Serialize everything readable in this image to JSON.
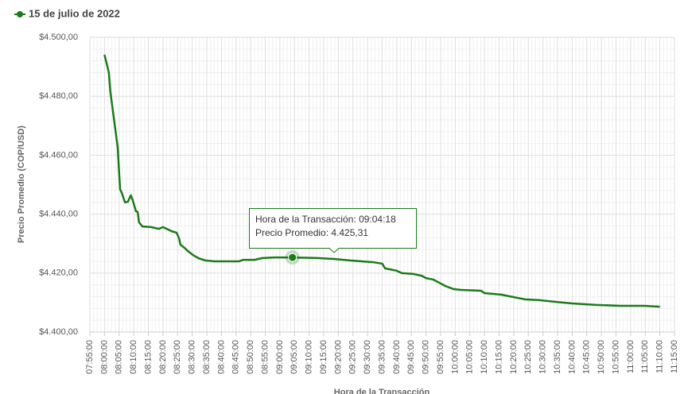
{
  "chart_data": {
    "type": "line",
    "x_label": "Hora de la Transacción",
    "y_label": "Precio Promedio (COP/USD)",
    "series": [
      {
        "name": "15 de julio de 2022",
        "color": "#1b7a1b",
        "x": [
          "08:00:00",
          "08:01:30",
          "08:02:00",
          "08:04:30",
          "08:05:20",
          "08:06:00",
          "08:07:00",
          "08:08:00",
          "08:09:00",
          "08:09:40",
          "08:10:45",
          "08:11:20",
          "08:11:50",
          "08:13:00",
          "08:16:00",
          "08:18:40",
          "08:20:00",
          "08:23:00",
          "08:24:40",
          "08:25:30",
          "08:26:00",
          "08:27:20",
          "08:28:30",
          "08:30:20",
          "08:32:15",
          "08:34:30",
          "08:37:40",
          "08:46:00",
          "08:47:30",
          "08:51:20",
          "08:54:00",
          "08:58:00",
          "09:04:18",
          "09:13:00",
          "09:18:30",
          "09:24:00",
          "09:32:00",
          "09:35:00",
          "09:36:00",
          "09:40:00",
          "09:41:40",
          "09:45:40",
          "09:48:30",
          "09:50:00",
          "09:52:30",
          "09:54:00",
          "09:56:40",
          "09:59:20",
          "10:02:00",
          "10:08:50",
          "10:10:00",
          "10:15:40",
          "10:19:45",
          "10:23:50",
          "10:29:00",
          "10:34:40",
          "10:40:00",
          "10:48:20",
          "10:56:30",
          "11:04:40",
          "11:10:00"
        ],
        "values": [
          4494.1,
          4488,
          4481.6,
          4462.8,
          4448.5,
          4447,
          4444,
          4444.2,
          4446.4,
          4444.7,
          4441,
          4440.8,
          4437.2,
          4435.8,
          4435.6,
          4435,
          4435.6,
          4434.2,
          4433.7,
          4431.8,
          4429.6,
          4428.6,
          4427.5,
          4426.1,
          4425,
          4424.3,
          4424,
          4424,
          4424.5,
          4424.5,
          4425.1,
          4425.3,
          4425.31,
          4425.1,
          4424.8,
          4424.3,
          4423.7,
          4423.2,
          4421.6,
          4420.8,
          4420,
          4419.7,
          4419.1,
          4418.3,
          4417.8,
          4417,
          4415.6,
          4414.6,
          4414.3,
          4414,
          4413.2,
          4412.7,
          4411.9,
          4411.1,
          4410.8,
          4410.2,
          4409.7,
          4409.2,
          4408.9,
          4408.9,
          4408.6
        ]
      }
    ],
    "xlim": [
      "07:55:00",
      "11:15:00"
    ],
    "xticks": [
      "07:55:00",
      "08:00:00",
      "08:05:00",
      "08:10:00",
      "08:15:00",
      "08:20:00",
      "08:25:00",
      "08:30:00",
      "08:35:00",
      "08:40:00",
      "08:45:00",
      "08:50:00",
      "08:55:00",
      "09:00:00",
      "09:05:00",
      "09:10:00",
      "09:15:00",
      "09:20:00",
      "09:25:00",
      "09:30:00",
      "09:35:00",
      "09:40:00",
      "09:45:00",
      "09:50:00",
      "09:55:00",
      "10:00:00",
      "10:05:00",
      "10:10:00",
      "10:15:00",
      "10:20:00",
      "10:25:00",
      "10:30:00",
      "10:35:00",
      "10:40:00",
      "10:45:00",
      "10:50:00",
      "10:55:00",
      "11:00:00",
      "11:05:00",
      "11:10:00",
      "11:15:00"
    ],
    "ylim": [
      4400,
      4500
    ],
    "yticks": [
      {
        "value": 4400,
        "label": "$4.400,00"
      },
      {
        "value": 4420,
        "label": "$4.420,00"
      },
      {
        "value": 4440,
        "label": "$4.440,00"
      },
      {
        "value": 4460,
        "label": "$4.460,00"
      },
      {
        "value": 4480,
        "label": "$4.480,00"
      },
      {
        "value": 4500,
        "label": "$4.500,00"
      }
    ],
    "grid": true,
    "legend": "top-left",
    "tooltip": [
      "Hora de la Transacción: 09:04:18",
      "Precio Promedio: 4.425,31"
    ]
  }
}
